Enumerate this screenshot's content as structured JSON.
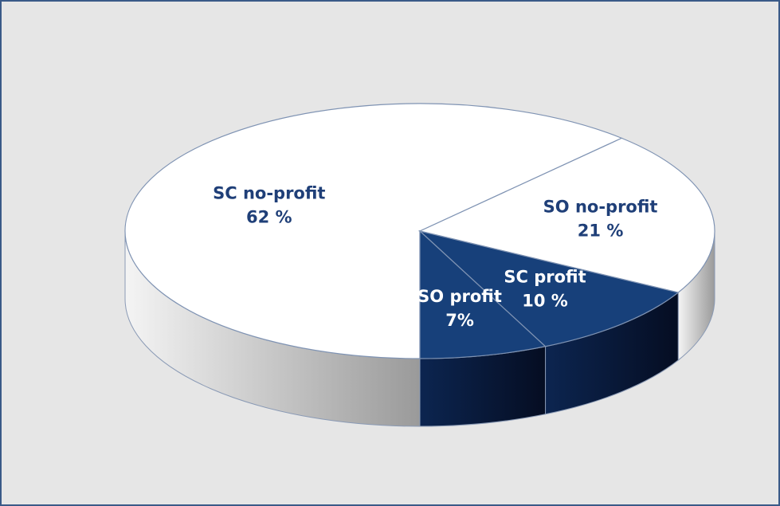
{
  "chart_data": {
    "type": "pie",
    "categories": [
      "SC no-profit",
      "SO no-profit",
      "SC profit",
      "SO profit"
    ],
    "values": [
      62,
      21,
      10,
      7
    ],
    "value_labels": [
      "62 %",
      "21 %",
      "10 %",
      "7%"
    ],
    "colors": [
      "#ffffff",
      "#ffffff",
      "#17407a",
      "#17407a"
    ]
  }
}
